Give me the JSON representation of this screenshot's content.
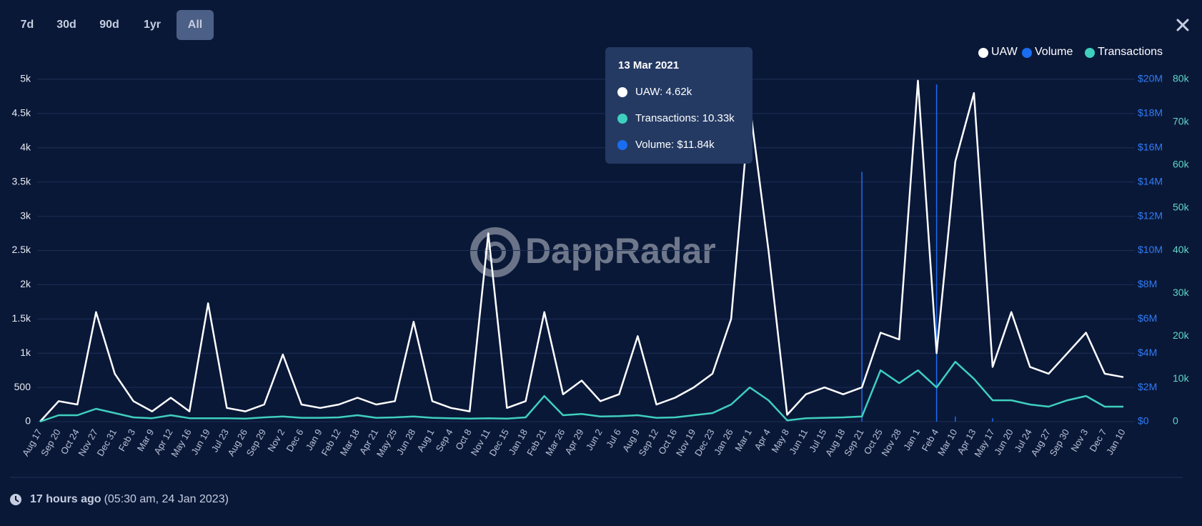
{
  "range_buttons": [
    {
      "label": "7d",
      "active": false
    },
    {
      "label": "30d",
      "active": false
    },
    {
      "label": "90d",
      "active": false
    },
    {
      "label": "1yr",
      "active": false
    },
    {
      "label": "All",
      "active": true
    }
  ],
  "watermark": "DappRadar",
  "tooltip": {
    "title": "13 Mar 2021",
    "items": [
      {
        "text": "UAW: 4.62k",
        "color": "#ffffff"
      },
      {
        "text": "Transactions: 10.33k",
        "color": "#3fcfbe"
      },
      {
        "text": "Volume: $11.84k",
        "color": "#1a6df0"
      }
    ]
  },
  "footer": {
    "relative": "17 hours ago",
    "absolute": "(05:30 am, 24 Jan 2023)"
  },
  "chart_data": {
    "type": "line",
    "categories": [
      "Aug 17",
      "Sep 20",
      "Oct 24",
      "Nov 27",
      "Dec 31",
      "Feb 3",
      "Mar 9",
      "Apr 12",
      "May 16",
      "Jun 19",
      "Jul 23",
      "Aug 26",
      "Sep 29",
      "Nov 2",
      "Dec 6",
      "Jan 9",
      "Feb 12",
      "Mar 18",
      "Apr 21",
      "May 25",
      "Jun 28",
      "Aug 1",
      "Sep 4",
      "Oct 8",
      "Nov 11",
      "Dec 15",
      "Jan 18",
      "Feb 21",
      "Mar 26",
      "Apr 29",
      "Jun 2",
      "Jul 6",
      "Aug 9",
      "Sep 12",
      "Oct 16",
      "Nov 19",
      "Dec 23",
      "Jan 26",
      "Mar 1",
      "Apr 4",
      "May 8",
      "Jun 11",
      "Jul 15",
      "Aug 18",
      "Sep 21",
      "Oct 25",
      "Nov 28",
      "Jan 1",
      "Feb 4",
      "Mar 10",
      "Apr 13",
      "May 17",
      "Jun 20",
      "Jul 24",
      "Aug 27",
      "Sep 30",
      "Nov 3",
      "Dec 7",
      "Jan 10"
    ],
    "series": [
      {
        "name": "UAW",
        "color": "#ffffff",
        "axis": "y",
        "values": [
          0,
          300,
          250,
          1600,
          700,
          300,
          150,
          350,
          150,
          1730,
          200,
          150,
          250,
          980,
          250,
          200,
          250,
          350,
          250,
          300,
          1460,
          300,
          200,
          150,
          2750,
          200,
          300,
          1600,
          400,
          600,
          300,
          400,
          1250,
          250,
          350,
          500,
          700,
          1500,
          4620,
          2500,
          100,
          400,
          500,
          400,
          500,
          1300,
          1200,
          4980,
          1000,
          3800,
          4800,
          800,
          1600,
          800,
          700,
          1000,
          1300,
          700,
          650
        ]
      },
      {
        "name": "Volume",
        "color": "#1a6df0",
        "axis": "y2",
        "values": [
          0,
          0,
          0,
          0,
          0,
          0,
          0,
          0,
          0,
          0,
          0,
          0,
          0,
          0,
          0,
          0,
          0,
          0,
          0,
          0,
          0,
          0,
          0,
          0,
          0,
          0,
          0,
          0,
          0,
          0,
          0,
          0,
          0,
          0,
          0,
          0,
          0,
          0,
          0,
          0,
          0,
          0,
          0,
          0,
          14600000,
          0,
          0,
          0,
          19700000,
          300000,
          0,
          200000,
          0,
          0,
          0,
          0,
          0,
          0,
          0
        ]
      },
      {
        "name": "Transactions",
        "color": "#3fcfbe",
        "axis": "y3",
        "values": [
          0,
          1500,
          1500,
          3000,
          2000,
          1000,
          800,
          1500,
          800,
          800,
          800,
          700,
          1000,
          1200,
          900,
          900,
          1000,
          1500,
          900,
          1000,
          1200,
          900,
          800,
          700,
          800,
          700,
          1000,
          6000,
          1500,
          1800,
          1200,
          1300,
          1500,
          900,
          1000,
          1500,
          2000,
          4000,
          8000,
          5000,
          300,
          800,
          900,
          1000,
          1200,
          12000,
          9000,
          12000,
          8000,
          14000,
          10000,
          5000,
          5000,
          4000,
          3500,
          5000,
          6000,
          3500,
          3500
        ]
      }
    ],
    "ylim": [
      0,
      5000
    ],
    "yticks": [
      0,
      500,
      {
        "value": 1000,
        "label": "1k"
      },
      {
        "value": 1500,
        "label": "1.5k"
      },
      {
        "value": 2000,
        "label": "2k"
      },
      {
        "value": 2500,
        "label": "2.5k"
      },
      {
        "value": 3000,
        "label": "3k"
      },
      {
        "value": 3500,
        "label": "3.5k"
      },
      {
        "value": 4000,
        "label": "4k"
      },
      {
        "value": 4500,
        "label": "4.5k"
      },
      {
        "value": 5000,
        "label": "5k"
      }
    ],
    "y2lim": [
      0,
      20000000
    ],
    "y2ticks": [
      {
        "value": 0,
        "label": "$0"
      },
      {
        "value": 2000000,
        "label": "$2M"
      },
      {
        "value": 4000000,
        "label": "$4M"
      },
      {
        "value": 6000000,
        "label": "$6M"
      },
      {
        "value": 8000000,
        "label": "$8M"
      },
      {
        "value": 10000000,
        "label": "$10M"
      },
      {
        "value": 12000000,
        "label": "$12M"
      },
      {
        "value": 14000000,
        "label": "$14M"
      },
      {
        "value": 16000000,
        "label": "$16M"
      },
      {
        "value": 18000000,
        "label": "$18M"
      },
      {
        "value": 20000000,
        "label": "$20M"
      }
    ],
    "y3lim": [
      0,
      80000
    ],
    "y3ticks": [
      0,
      {
        "value": 10000,
        "label": "10k"
      },
      {
        "value": 20000,
        "label": "20k"
      },
      {
        "value": 30000,
        "label": "30k"
      },
      {
        "value": 40000,
        "label": "40k"
      },
      {
        "value": 50000,
        "label": "50k"
      },
      {
        "value": 60000,
        "label": "60k"
      },
      {
        "value": 70000,
        "label": "70k"
      },
      {
        "value": 80000,
        "label": "80k"
      }
    ],
    "grid": true,
    "legend": "top-right"
  }
}
